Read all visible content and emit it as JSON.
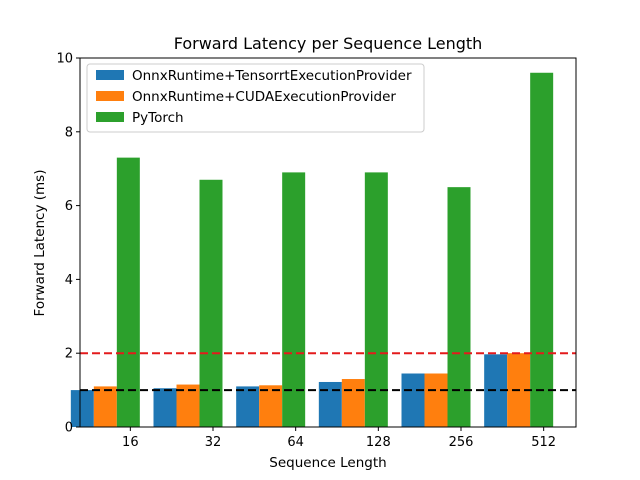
{
  "chart_data": {
    "type": "bar",
    "title": "Forward Latency per Sequence Length",
    "xlabel": "Sequence Length",
    "ylabel": "Forward Latency (ms)",
    "categories": [
      "16",
      "32",
      "64",
      "128",
      "256",
      "512"
    ],
    "ylim": [
      0,
      10
    ],
    "yticks": [
      0,
      2,
      4,
      6,
      8,
      10
    ],
    "grid": false,
    "legend_position": "top-left",
    "series": [
      {
        "name": "OnnxRuntime+TensorrtExecutionProvider",
        "color": "#1f77b4",
        "values": [
          1.0,
          1.05,
          1.1,
          1.22,
          1.45,
          1.97
        ]
      },
      {
        "name": "OnnxRuntime+CUDAExecutionProvider",
        "color": "#ff7f0e",
        "values": [
          1.1,
          1.15,
          1.13,
          1.3,
          1.45,
          2.0
        ]
      },
      {
        "name": "PyTorch",
        "color": "#2ca02c",
        "values": [
          7.3,
          6.7,
          6.9,
          6.9,
          6.5,
          9.6
        ]
      }
    ],
    "reference_lines": [
      {
        "value": 2,
        "color": "#e31a1c",
        "style": "dashed"
      },
      {
        "value": 1,
        "color": "#000000",
        "style": "dashed"
      }
    ]
  }
}
